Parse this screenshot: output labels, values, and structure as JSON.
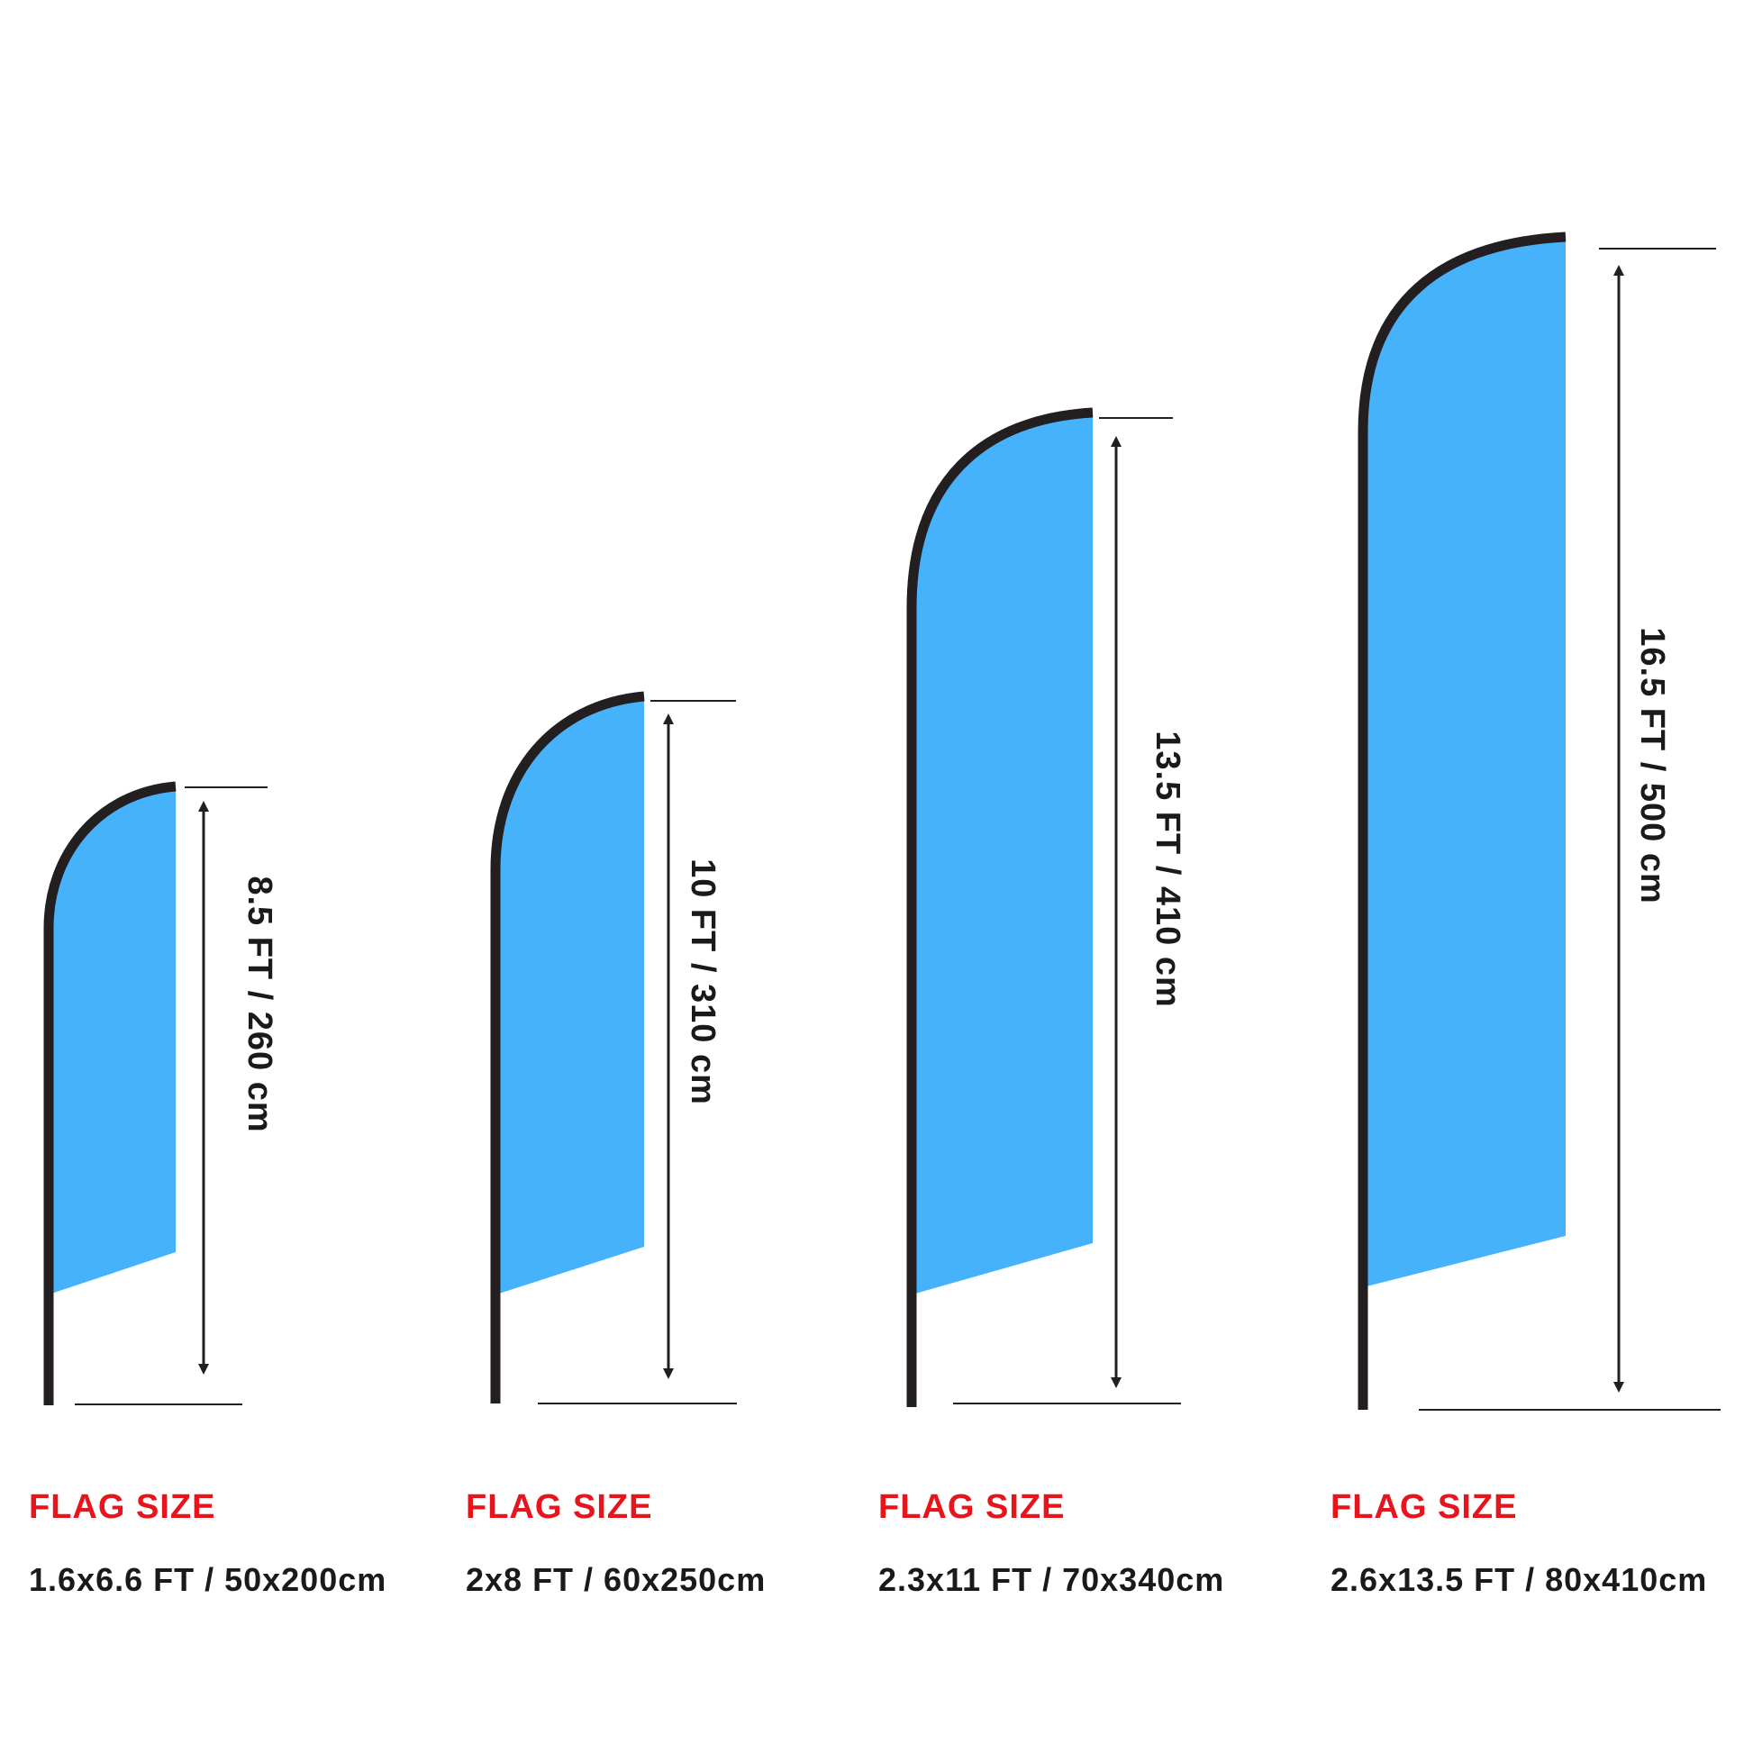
{
  "colors": {
    "flag_fill": "#47b2fc",
    "pole": "#231f20",
    "heading": "#e8141c",
    "text": "#1a1a1a"
  },
  "flags": [
    {
      "height_label": "8.5 FT / 260 cm",
      "size_heading": "FLAG SIZE",
      "size_value": "1.6x6.6 FT / 50x200cm"
    },
    {
      "height_label": "10 FT / 310 cm",
      "size_heading": "FLAG SIZE",
      "size_value": "2x8 FT / 60x250cm"
    },
    {
      "height_label": "13.5 FT / 410 cm",
      "size_heading": "FLAG SIZE",
      "size_value": "2.3x11 FT / 70x340cm"
    },
    {
      "height_label": "16.5 FT / 500 cm",
      "size_heading": "FLAG SIZE",
      "size_value": "2.6x13.5 FT / 80x410cm"
    }
  ]
}
